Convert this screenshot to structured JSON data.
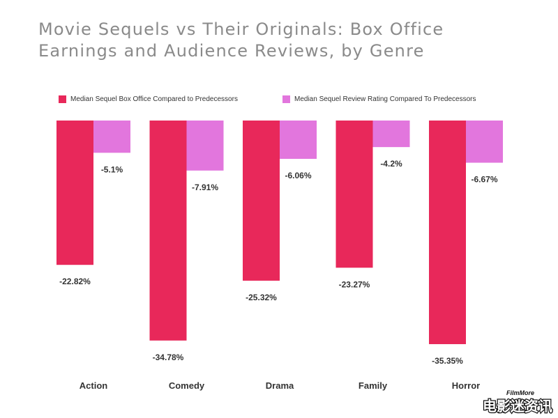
{
  "title_line1": "Movie Sequels vs Their Originals: Box Office",
  "title_line2": "Earnings and Audience Reviews, by Genre",
  "colors": {
    "box_office": "#e8285a",
    "review": "#e276dd",
    "text": "#333333",
    "title": "#8a8a8a"
  },
  "chart_data": {
    "type": "bar",
    "title": "Movie Sequels vs Their Originals: Box Office Earnings and Audience Reviews, by Genre",
    "categories": [
      "Action",
      "Comedy",
      "Drama",
      "Family",
      "Horror"
    ],
    "series": [
      {
        "name": "Median Sequel Box Office Compared to Predecessors",
        "values": [
          -22.82,
          -34.78,
          -25.32,
          -23.27,
          -35.35
        ]
      },
      {
        "name": "Median Sequel Review Rating Compared To Predecessors",
        "values": [
          -5.1,
          -7.91,
          -6.06,
          -4.2,
          -6.67
        ]
      }
    ],
    "data_labels": [
      [
        "-22.82%",
        "-34.78%",
        "-25.32%",
        "-23.27%",
        "-35.35%"
      ],
      [
        "-5.1%",
        "-7.91%",
        "-6.06%",
        "-4.2%",
        "-6.67%"
      ]
    ],
    "ylim": [
      -36,
      0
    ],
    "grid": false,
    "legend_position": "top",
    "xlabel": "",
    "ylabel": ""
  },
  "logo": {
    "top_text": "FilmMore",
    "main_text": "电影迷资讯"
  }
}
